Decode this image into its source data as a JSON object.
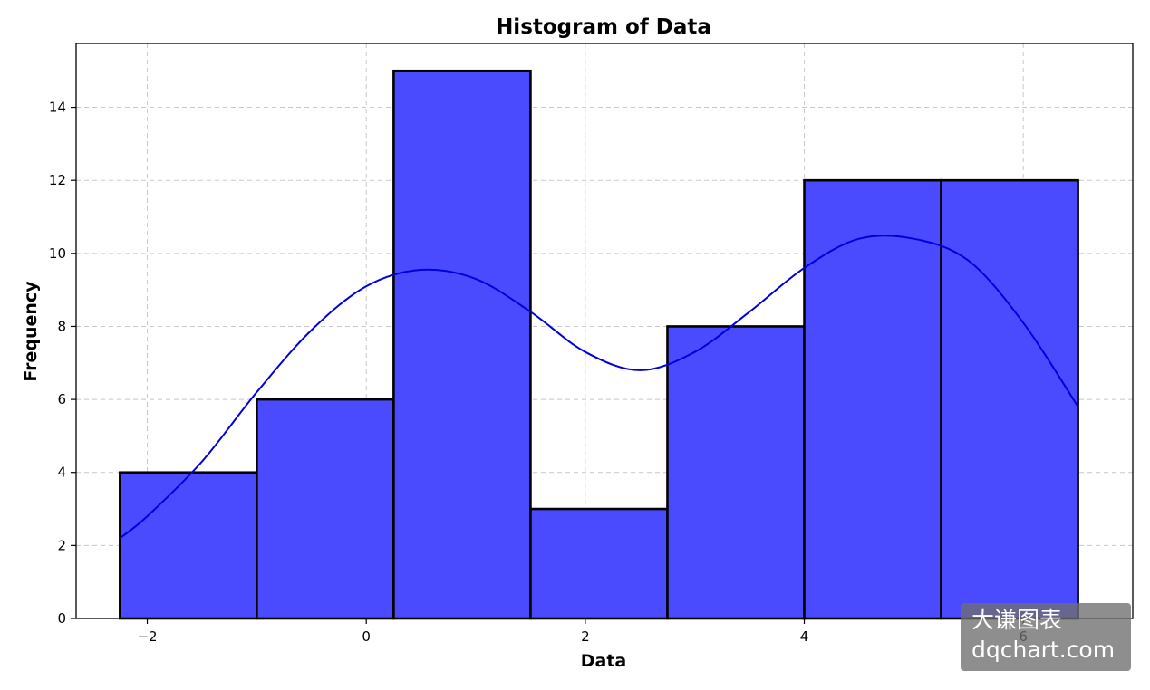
{
  "chart_data": {
    "type": "bar",
    "title": "Histogram of Data",
    "xlabel": "Data",
    "ylabel": "Frequency",
    "bins": [
      {
        "x0": -2.25,
        "x1": -1.0,
        "count": 4
      },
      {
        "x0": -1.0,
        "x1": 0.25,
        "count": 6
      },
      {
        "x0": 0.25,
        "x1": 1.5,
        "count": 15
      },
      {
        "x0": 1.5,
        "x1": 2.75,
        "count": 3
      },
      {
        "x0": 2.75,
        "x1": 4.0,
        "count": 8
      },
      {
        "x0": 4.0,
        "x1": 5.25,
        "count": 12
      },
      {
        "x0": 5.25,
        "x1": 6.5,
        "count": 12
      }
    ],
    "kde_curve": {
      "x": [
        -2.25,
        -2.0,
        -1.5,
        -1.0,
        -0.5,
        0.0,
        0.5,
        1.0,
        1.5,
        2.0,
        2.5,
        3.0,
        3.5,
        4.0,
        4.5,
        5.0,
        5.5,
        6.0,
        6.5
      ],
      "y": [
        2.2,
        2.8,
        4.3,
        6.2,
        7.9,
        9.1,
        9.55,
        9.3,
        8.4,
        7.3,
        6.8,
        7.3,
        8.4,
        9.6,
        10.4,
        10.4,
        9.8,
        8.1,
        5.8
      ]
    },
    "xlim": [
      -2.65,
      7.0
    ],
    "ylim": [
      0,
      15.75
    ],
    "xticks": [
      -2,
      0,
      2,
      4,
      6
    ],
    "xtick_labels": [
      "−2",
      "0",
      "2",
      "4",
      "6"
    ],
    "yticks": [
      0,
      2,
      4,
      6,
      8,
      10,
      12,
      14
    ],
    "ytick_labels": [
      "0",
      "2",
      "4",
      "6",
      "8",
      "10",
      "12",
      "14"
    ],
    "grid": true,
    "bar_color": "#4a4aff",
    "bar_edge_color": "#000000",
    "curve_color": "#0000dd"
  },
  "watermark": {
    "line1": "大谦图表",
    "line2": "dqchart.com"
  }
}
